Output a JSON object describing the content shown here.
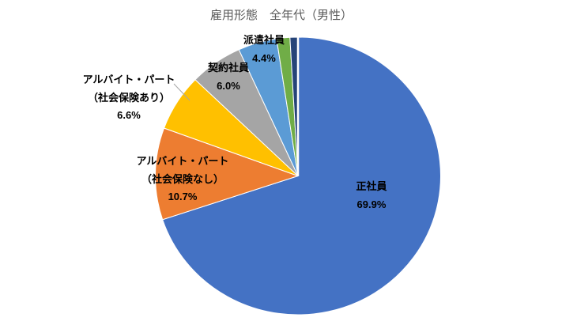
{
  "title": "雇用形態　全年代（男性）",
  "chart_data": {
    "type": "pie",
    "title": "雇用形態　全年代（男性）",
    "start_angle_deg": 0,
    "direction": "clockwise",
    "legend_position": "none",
    "data_labels": "category name and percentage, bold black",
    "segments": [
      {
        "id": "seishain",
        "label": "正社員",
        "value": 69.9,
        "color": "#4472C4",
        "display": [
          "正社員",
          "69.9%"
        ]
      },
      {
        "id": "part-nashi",
        "label": "アルバイト・パート（社会保険なし）",
        "value": 10.7,
        "color": "#ED7D31",
        "display": [
          "アルバイト・パート",
          "（社会保険なし）",
          "10.7%"
        ]
      },
      {
        "id": "part-ari",
        "label": "アルバイト・パート（社会保険あり）",
        "value": 6.6,
        "color": "#FFC000",
        "display": [
          "アルバイト・パート",
          "（社会保険あり）",
          "6.6%"
        ]
      },
      {
        "id": "keiyaku",
        "label": "契約社員",
        "value": 6.0,
        "color": "#A5A5A5",
        "display": [
          "契約社員",
          "6.0%"
        ]
      },
      {
        "id": "haken",
        "label": "派遣社員",
        "value": 4.4,
        "color": "#5B9BD5",
        "display": [
          "派遣社員",
          "4.4%"
        ]
      },
      {
        "id": "unlabeled-green",
        "label": "",
        "value": 1.5,
        "color": "#70AD47",
        "display": [],
        "estimated": true
      },
      {
        "id": "unlabeled-dark-navy",
        "label": "",
        "value": 0.9,
        "color": "#264478",
        "display": [],
        "estimated": true
      }
    ]
  }
}
